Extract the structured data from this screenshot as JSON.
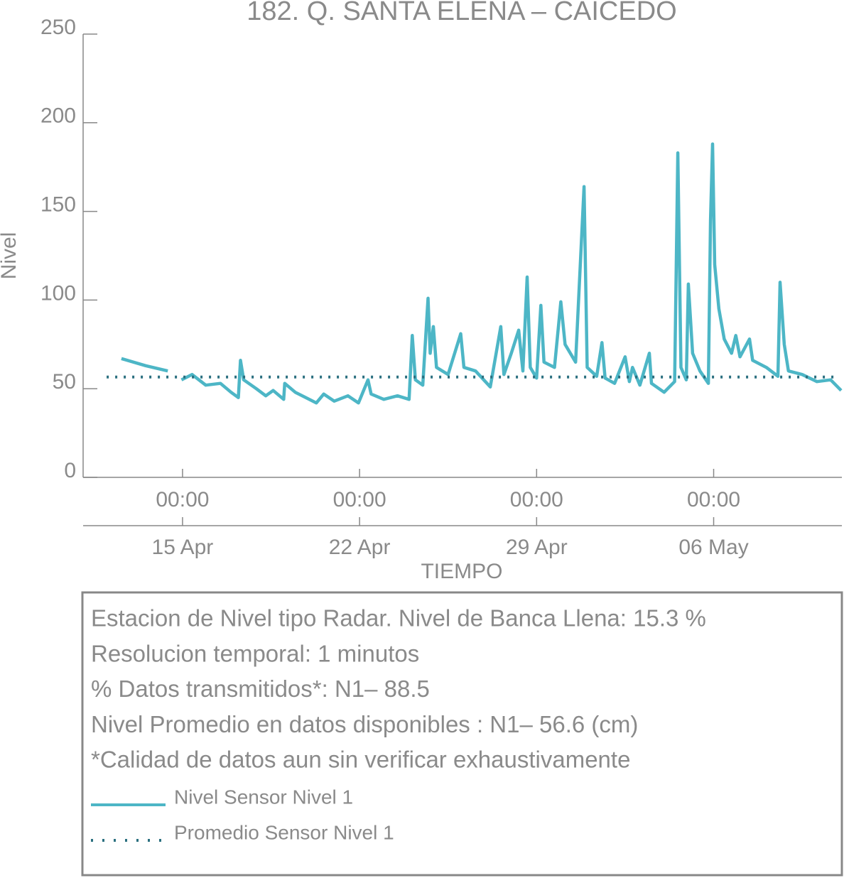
{
  "chart_data": {
    "type": "line",
    "title": "182. Q. SANTA ELENA – CAICEDO",
    "y_label": "Nivel",
    "x_label": "TIEMPO",
    "ylim": [
      0,
      250
    ],
    "yticks": [
      0,
      50,
      100,
      150,
      200,
      250
    ],
    "xlim": [
      "11 Apr 01:40",
      "11 May 01:40"
    ],
    "xticks": [
      {
        "value": "15 Apr 00:00",
        "label": "00:00"
      },
      {
        "value": "22 Apr 00:00",
        "label": "00:00"
      },
      {
        "value": "29 Apr 00:00",
        "label": "00:00"
      },
      {
        "value": "06 May 00:00",
        "label": "00:00"
      }
    ],
    "xticks_dates": [
      {
        "value": "15 Apr 00:00",
        "label": "15 Apr"
      },
      {
        "value": "22 Apr 00:00",
        "label": "22 Apr"
      },
      {
        "value": "29 Apr 00:00",
        "label": "29 Apr"
      },
      {
        "value": "06 May 00:00",
        "label": "06 May"
      }
    ],
    "info_lines": [
      "Estacion de Nivel tipo Radar. Nivel de Banca Llena: 15.3 %",
      "Resolucion temporal: 1 minutos",
      "% Datos transmitidos*: N1– 88.5",
      "Nivel Promedio en datos disponibles : N1– 56.6 (cm)",
      "*Calidad de datos aun sin verificar exhaustivamente"
    ],
    "series": [
      {
        "name": "Nivel Sensor Nivel 1",
        "color": "#4db6c6",
        "style": "solid",
        "x": [
          "12 Apr 14:00",
          "13 Apr 13:00",
          "14 Apr 10:00",
          "14 Apr 16:00",
          "14 Apr 23:00",
          "15 Apr 09:00",
          "15 Apr 22:00",
          "16 Apr 12:00",
          "16 Apr 22:00",
          "17 Apr 05:00",
          "17 Apr 07:00",
          "17 Apr 10:00",
          "17 Apr 22:00",
          "18 Apr 07:00",
          "18 Apr 14:00",
          "19 Apr 00:00",
          "19 Apr 01:00",
          "19 Apr 11:00",
          "19 Apr 21:00",
          "20 Apr 07:00",
          "20 Apr 14:00",
          "21 Apr 00:00",
          "21 Apr 13:00",
          "21 Apr 23:00",
          "22 Apr 08:00",
          "22 Apr 11:00",
          "22 Apr 23:00",
          "23 Apr 12:00",
          "23 Apr 23:00",
          "24 Apr 02:00",
          "24 Apr 05:00",
          "24 Apr 12:00",
          "24 Apr 17:00",
          "24 Apr 19:00",
          "24 Apr 22:00",
          "25 Apr 01:00",
          "25 Apr 12:00",
          "26 Apr 00:00",
          "26 Apr 03:00",
          "26 Apr 14:00",
          "27 Apr 04:00",
          "27 Apr 14:00",
          "27 Apr 17:00",
          "28 Apr 00:00",
          "28 Apr 07:00",
          "28 Apr 11:00",
          "28 Apr 15:00",
          "28 Apr 18:00",
          "29 Apr 00:00",
          "29 Apr 04:00",
          "29 Apr 07:00",
          "29 Apr 17:00",
          "29 Apr 23:00",
          "30 Apr 03:00",
          "30 Apr 13:00",
          "30 Apr 21:00",
          "01 May 00:00",
          "01 May 09:00",
          "01 May 14:00",
          "01 May 17:00",
          "02 May 02:00",
          "02 May 12:00",
          "02 May 16:00",
          "02 May 19:00",
          "03 May 02:00",
          "03 May 11:00",
          "03 May 13:00",
          "04 May 01:00",
          "04 May 11:00",
          "04 May 14:00",
          "04 May 17:00",
          "04 May 22:00",
          "05 May 00:00",
          "05 May 04:00",
          "05 May 11:00",
          "05 May 19:00",
          "05 May 21:00",
          "05 May 23:00",
          "06 May 01:00",
          "06 May 05:00",
          "06 May 10:00",
          "06 May 17:00",
          "06 May 21:00",
          "07 May 01:00",
          "07 May 10:00",
          "07 May 13:00",
          "08 May 02:00",
          "08 May 13:00",
          "08 May 15:00",
          "08 May 19:00",
          "08 May 23:00",
          "09 May 12:00",
          "10 May 02:00",
          "10 May 15:00",
          "11 May 01:00"
        ],
        "values": [
          67,
          63,
          60,
          null,
          55,
          58,
          52,
          53,
          48,
          45,
          66,
          55,
          50,
          46,
          49,
          44,
          53,
          48,
          45,
          42,
          47,
          43,
          46,
          42,
          55,
          47,
          44,
          46,
          44,
          80,
          55,
          52,
          101,
          70,
          85,
          62,
          58,
          81,
          62,
          60,
          51,
          85,
          58,
          70,
          83,
          60,
          113,
          62,
          56,
          97,
          65,
          62,
          99,
          75,
          65,
          164,
          62,
          57,
          76,
          56,
          53,
          68,
          54,
          62,
          52,
          70,
          53,
          48,
          54,
          183,
          62,
          55,
          109,
          70,
          60,
          53,
          145,
          188,
          120,
          95,
          78,
          70,
          80,
          68,
          78,
          66,
          62,
          57,
          110,
          75,
          60,
          58,
          54,
          55,
          49
        ]
      },
      {
        "name": "Promedio Sensor Nivel 1",
        "color": "#2a6f7f",
        "style": "dotted",
        "x": [
          "12 Apr 00:00",
          "10 May 22:00"
        ],
        "values": [
          56.6,
          56.6
        ]
      }
    ]
  }
}
